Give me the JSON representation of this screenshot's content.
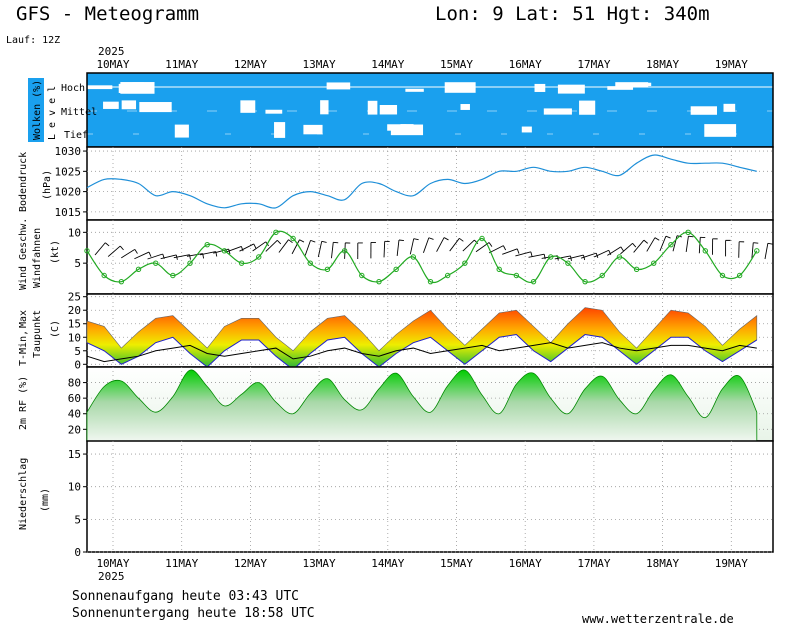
{
  "header": {
    "model_title": "GFS - Meteogramm",
    "location": "Lon: 9 Lat: 51 Hgt: 340m",
    "run": "Lauf: 12Z",
    "year_top": "2025",
    "year_bottom": "2025"
  },
  "dates": [
    "10MAY",
    "11MAY",
    "12MAY",
    "13MAY",
    "14MAY",
    "15MAY",
    "16MAY",
    "17MAY",
    "18MAY",
    "19MAY"
  ],
  "footer": {
    "sunrise": "Sonnenaufgang heute 03:43 UTC",
    "sunset": "Sonnenuntergang heute 18:58 UTC",
    "site": "www.wetterzentrale.de"
  },
  "colors": {
    "cloud_bg": "#1aa0ee",
    "pressure_line": "#1e8fd8",
    "wind_line": "#22aa22",
    "dewpoint_line": "#000000",
    "rh_fill": "#00cc00",
    "label_blue": "#1aa0ee",
    "label_green": "#22aa22",
    "label_red": "#ff2222",
    "label_tmin": "#2222cc"
  },
  "chart_data": [
    {
      "type": "heatmap",
      "panel": "clouds",
      "ylabel_main": "Wolken (%)",
      "ylabel_sub": "L e v e l",
      "levels": [
        "Hoch",
        "Mittel",
        "Tief"
      ]
    },
    {
      "type": "line",
      "panel": "pressure",
      "ylabel": [
        "Bodendruck",
        "(hPa)"
      ],
      "ylim": [
        1013,
        1031
      ],
      "yticks": [
        1015,
        1020,
        1025,
        1030
      ],
      "x_days": [
        0.0,
        0.25,
        0.5,
        0.75,
        1.0,
        1.25,
        1.5,
        1.75,
        2.0,
        2.25,
        2.5,
        2.75,
        3.0,
        3.25,
        3.5,
        3.75,
        4.0,
        4.25,
        4.5,
        4.75,
        5.0,
        5.25,
        5.5,
        5.75,
        6.0,
        6.25,
        6.5,
        6.75,
        7.0,
        7.25,
        7.5,
        7.75,
        8.0,
        8.25,
        8.5,
        8.75,
        9.0,
        9.25,
        9.5,
        9.75
      ],
      "values": [
        1021,
        1023,
        1023,
        1022,
        1019,
        1020,
        1019,
        1017,
        1016,
        1017,
        1017,
        1016,
        1019,
        1020,
        1019,
        1018,
        1022,
        1022,
        1020,
        1019,
        1022,
        1023,
        1022,
        1023,
        1025,
        1025,
        1026,
        1025,
        1025,
        1026,
        1025,
        1024,
        1027,
        1029,
        1028,
        1027,
        1027,
        1027,
        1026,
        1025
      ]
    },
    {
      "type": "line",
      "panel": "wind",
      "ylabel_main": "Wind Geschw.",
      "ylabel_sub": "Windfahnen",
      "ylabel_unit": "(kt)",
      "ylim": [
        0,
        12
      ],
      "yticks": [
        5,
        10
      ],
      "x_days": [
        0.0,
        0.25,
        0.5,
        0.75,
        1.0,
        1.25,
        1.5,
        1.75,
        2.0,
        2.25,
        2.5,
        2.75,
        3.0,
        3.25,
        3.5,
        3.75,
        4.0,
        4.25,
        4.5,
        4.75,
        5.0,
        5.25,
        5.5,
        5.75,
        6.0,
        6.25,
        6.5,
        6.75,
        7.0,
        7.25,
        7.5,
        7.75,
        8.0,
        8.25,
        8.5,
        8.75,
        9.0,
        9.25,
        9.5,
        9.75
      ],
      "values": [
        7,
        3,
        2,
        4,
        5,
        3,
        5,
        8,
        7,
        5,
        6,
        10,
        9,
        5,
        4,
        7,
        3,
        2,
        4,
        6,
        2,
        3,
        5,
        9,
        4,
        3,
        2,
        6,
        5,
        2,
        3,
        6,
        4,
        5,
        8,
        10,
        7,
        3,
        3,
        7
      ]
    },
    {
      "type": "area",
      "panel": "temperature",
      "ylabel_parts": [
        "T-Min,",
        "Max"
      ],
      "ylabel_sub": "Taupunkt",
      "ylabel_unit": "(C)",
      "ylim": [
        -1,
        26
      ],
      "yticks": [
        0,
        5,
        10,
        15,
        20,
        25
      ],
      "x_days": [
        0.0,
        0.25,
        0.5,
        0.75,
        1.0,
        1.25,
        1.5,
        1.75,
        2.0,
        2.25,
        2.5,
        2.75,
        3.0,
        3.25,
        3.5,
        3.75,
        4.0,
        4.25,
        4.5,
        4.75,
        5.0,
        5.25,
        5.5,
        5.75,
        6.0,
        6.25,
        6.5,
        6.75,
        7.0,
        7.25,
        7.5,
        7.75,
        8.0,
        8.25,
        8.5,
        8.75,
        9.0,
        9.25,
        9.5,
        9.75
      ],
      "series": [
        {
          "name": "T-Max",
          "values": [
            16,
            14,
            6,
            12,
            17,
            18,
            12,
            6,
            14,
            17,
            17,
            10,
            5,
            12,
            17,
            18,
            12,
            5,
            11,
            16,
            20,
            13,
            7,
            13,
            19,
            20,
            14,
            8,
            15,
            21,
            20,
            12,
            6,
            13,
            20,
            19,
            14,
            7,
            13,
            18
          ]
        },
        {
          "name": "T-Min",
          "values": [
            13,
            10,
            5,
            8,
            13,
            15,
            9,
            4,
            10,
            14,
            14,
            8,
            3,
            9,
            14,
            15,
            9,
            4,
            9,
            13,
            15,
            10,
            5,
            10,
            15,
            16,
            10,
            6,
            11,
            16,
            15,
            10,
            5,
            10,
            15,
            15,
            10,
            6,
            10,
            14
          ]
        },
        {
          "name": "Taupunkt",
          "values": [
            3,
            1,
            2,
            3,
            5,
            6,
            7,
            4,
            3,
            4,
            5,
            6,
            2,
            3,
            5,
            6,
            4,
            3,
            5,
            6,
            4,
            5,
            6,
            7,
            5,
            6,
            7,
            8,
            6,
            7,
            8,
            6,
            5,
            6,
            7,
            7,
            6,
            5,
            7,
            6
          ]
        }
      ]
    },
    {
      "type": "area",
      "panel": "humidity",
      "ylabel": "2m RF (%)",
      "ylim": [
        5,
        100
      ],
      "yticks": [
        20,
        40,
        60,
        80
      ],
      "x_days": [
        0.0,
        0.25,
        0.5,
        0.75,
        1.0,
        1.25,
        1.5,
        1.75,
        2.0,
        2.25,
        2.5,
        2.75,
        3.0,
        3.25,
        3.5,
        3.75,
        4.0,
        4.25,
        4.5,
        4.75,
        5.0,
        5.25,
        5.5,
        5.75,
        6.0,
        6.25,
        6.5,
        6.75,
        7.0,
        7.25,
        7.5,
        7.75,
        8.0,
        8.25,
        8.5,
        8.75,
        9.0,
        9.25,
        9.5,
        9.75
      ],
      "values": [
        42,
        75,
        82,
        60,
        42,
        62,
        96,
        75,
        50,
        65,
        80,
        55,
        40,
        66,
        85,
        58,
        45,
        72,
        92,
        62,
        42,
        76,
        96,
        64,
        40,
        78,
        92,
        60,
        40,
        72,
        88,
        58,
        40,
        70,
        90,
        62,
        35,
        72,
        88,
        42
      ]
    },
    {
      "type": "bar",
      "panel": "precipitation",
      "ylabel": [
        "Niederschlag",
        "(mm)"
      ],
      "ylim": [
        0,
        17
      ],
      "yticks": [
        0,
        5,
        10,
        15
      ],
      "values": []
    }
  ]
}
